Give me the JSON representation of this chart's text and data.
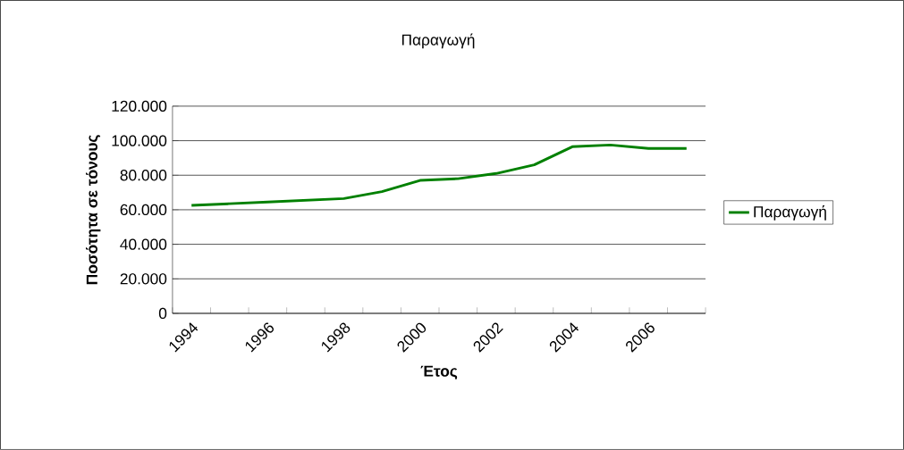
{
  "chart_data": {
    "type": "line",
    "title": "Παραγωγή",
    "xlabel": "Έτος",
    "ylabel": "Ποσότητα σε τόνους",
    "categories": [
      "1994",
      null,
      "1996",
      null,
      "1998",
      null,
      "2000",
      null,
      "2002",
      null,
      "2004",
      null,
      "2006",
      null
    ],
    "series": [
      {
        "name": "Παραγωγή",
        "color": "#008000",
        "values": [
          62500,
          63500,
          64500,
          65500,
          66500,
          70500,
          77000,
          78000,
          81000,
          86000,
          96500,
          97500,
          95500,
          95500
        ]
      }
    ],
    "ylim": [
      0,
      120000
    ],
    "yticks": [
      {
        "value": 0,
        "label": "0"
      },
      {
        "value": 20000,
        "label": "20.000"
      },
      {
        "value": 40000,
        "label": "40.000"
      },
      {
        "value": 60000,
        "label": "60.000"
      },
      {
        "value": 80000,
        "label": "80.000"
      },
      {
        "value": 100000,
        "label": "100.000"
      },
      {
        "value": 120000,
        "label": "120.000"
      }
    ],
    "grid": "y",
    "legend": "right",
    "marker": "none",
    "line_style": "solid"
  }
}
